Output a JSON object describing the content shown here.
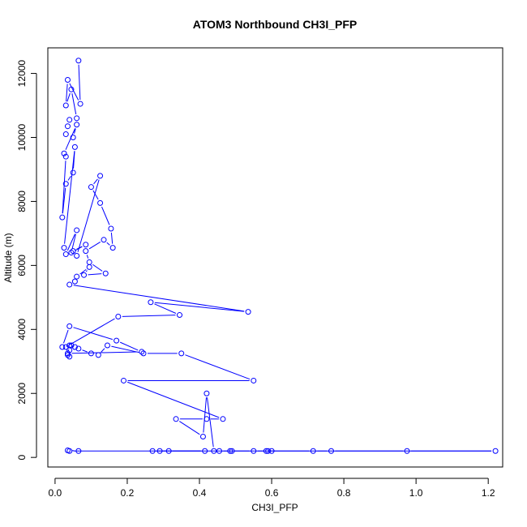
{
  "chart_data": {
    "type": "scatter",
    "title": "ATOM3 Northbound CH3I_PFP",
    "xlabel": "CH3I_PFP",
    "ylabel": "Altitude (m)",
    "xlim": [
      -0.02,
      1.24
    ],
    "ylim": [
      -300,
      12800
    ],
    "xticks": [
      {
        "value": 0.0,
        "label": "0.0"
      },
      {
        "value": 0.2,
        "label": "0.2"
      },
      {
        "value": 0.4,
        "label": "0.4"
      },
      {
        "value": 0.6,
        "label": "0.6"
      },
      {
        "value": 0.8,
        "label": "0.8"
      },
      {
        "value": 1.0,
        "label": "1.0"
      },
      {
        "value": 1.2,
        "label": "1.2"
      }
    ],
    "yticks": [
      {
        "value": 0,
        "label": "0"
      },
      {
        "value": 2000,
        "label": "2000"
      },
      {
        "value": 4000,
        "label": "4000"
      },
      {
        "value": 6000,
        "label": "6000"
      },
      {
        "value": 8000,
        "label": "8000"
      },
      {
        "value": 10000,
        "label": "10000"
      },
      {
        "value": 12000,
        "label": "12000"
      }
    ],
    "grid": false,
    "legend": "none",
    "series_color": "#0000ff",
    "line_color": "#0000ff",
    "x": [
      0.065,
      0.07,
      0.035,
      0.03,
      0.045,
      0.06,
      0.04,
      0.035,
      0.03,
      0.05,
      0.06,
      0.025,
      0.03,
      0.02,
      0.03,
      0.05,
      0.055,
      0.025,
      0.03,
      0.06,
      0.045,
      0.085,
      0.05,
      0.06,
      0.125,
      0.1,
      0.125,
      0.155,
      0.16,
      0.135,
      0.085,
      0.095,
      0.14,
      0.08,
      0.095,
      0.06,
      0.055,
      0.04,
      0.535,
      0.265,
      0.345,
      0.175,
      0.03,
      0.045,
      0.02,
      0.04,
      0.17,
      0.24,
      0.035,
      0.04,
      0.035,
      0.04,
      0.055,
      0.04,
      0.065,
      0.1,
      0.12,
      0.145,
      0.245,
      0.35,
      0.55,
      0.19,
      0.465,
      0.42,
      0.335,
      0.41,
      0.42,
      0.44,
      0.455,
      0.49,
      0.485,
      0.55,
      0.59,
      0.6,
      0.585,
      0.715,
      0.765,
      0.975,
      1.22,
      0.29,
      0.27,
      0.315,
      0.415,
      0.04,
      0.035,
      0.065
    ],
    "y": [
      12400,
      11050,
      11800,
      11000,
      11500,
      10600,
      10550,
      10350,
      10100,
      10000,
      10400,
      9500,
      9400,
      7500,
      8550,
      8900,
      9700,
      6550,
      6350,
      7100,
      6400,
      6650,
      6450,
      6300,
      8800,
      8450,
      7950,
      7150,
      6550,
      6800,
      6450,
      6100,
      5750,
      5700,
      5950,
      5650,
      5500,
      5400,
      4550,
      4850,
      4450,
      4400,
      3450,
      3500,
      3450,
      4100,
      3650,
      3300,
      3250,
      3150,
      3200,
      3500,
      3450,
      3350,
      3400,
      3250,
      3200,
      3500,
      3250,
      3250,
      2400,
      2400,
      1200,
      1200,
      1200,
      650,
      2000,
      200,
      200,
      200,
      200,
      200,
      200,
      200,
      200,
      200,
      200,
      200,
      200,
      200,
      200,
      200,
      200,
      200,
      220,
      200
    ]
  }
}
